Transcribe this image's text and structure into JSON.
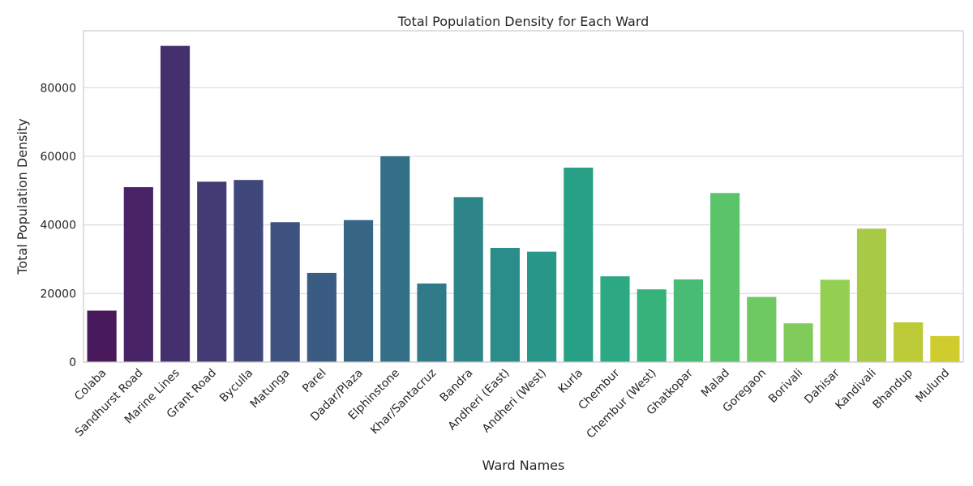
{
  "chart_data": {
    "type": "bar",
    "title": "Total Population Density for Each Ward",
    "xlabel": "Ward Names",
    "ylabel": "Total Population Density",
    "ylim": [
      0,
      96600
    ],
    "yticks": [
      0,
      20000,
      40000,
      60000,
      80000
    ],
    "ytick_labels": [
      "0",
      "20000",
      "40000",
      "60000",
      "80000"
    ],
    "grid": "horizontal",
    "categories": [
      "Colaba",
      "Sandhurst Road",
      "Marine Lines",
      "Grant Road",
      "Byculla",
      "Matunga",
      "Parel",
      "Dadar/Plaza",
      "Elphinstone",
      "Khar/Santacruz",
      "Bandra",
      "Andheri (East)",
      "Andheri (West)",
      "Kurla",
      "Chembur",
      "Chembur (West)",
      "Ghatkopar",
      "Malad",
      "Goregaon",
      "Borivali",
      "Dahisar",
      "Kandivali",
      "Bhandup",
      "Mulund"
    ],
    "values": [
      15000,
      51000,
      92200,
      52600,
      53100,
      40800,
      26000,
      41400,
      60000,
      22900,
      48100,
      33300,
      32200,
      56700,
      25000,
      21200,
      24100,
      49300,
      19000,
      11300,
      24000,
      38900,
      11600,
      7600
    ],
    "colors": [
      "#481a5c",
      "#482466",
      "#45306f",
      "#443b75",
      "#40477b",
      "#3d527f",
      "#3a5c83",
      "#376685",
      "#347088",
      "#317a89",
      "#2d8489",
      "#2a8d89",
      "#289688",
      "#27a085",
      "#2ca982",
      "#37b27b",
      "#48bb74",
      "#5bc46b",
      "#6ec962",
      "#7fcc5a",
      "#93cf51",
      "#a8c946",
      "#bcca38",
      "#d0cc2e"
    ]
  }
}
